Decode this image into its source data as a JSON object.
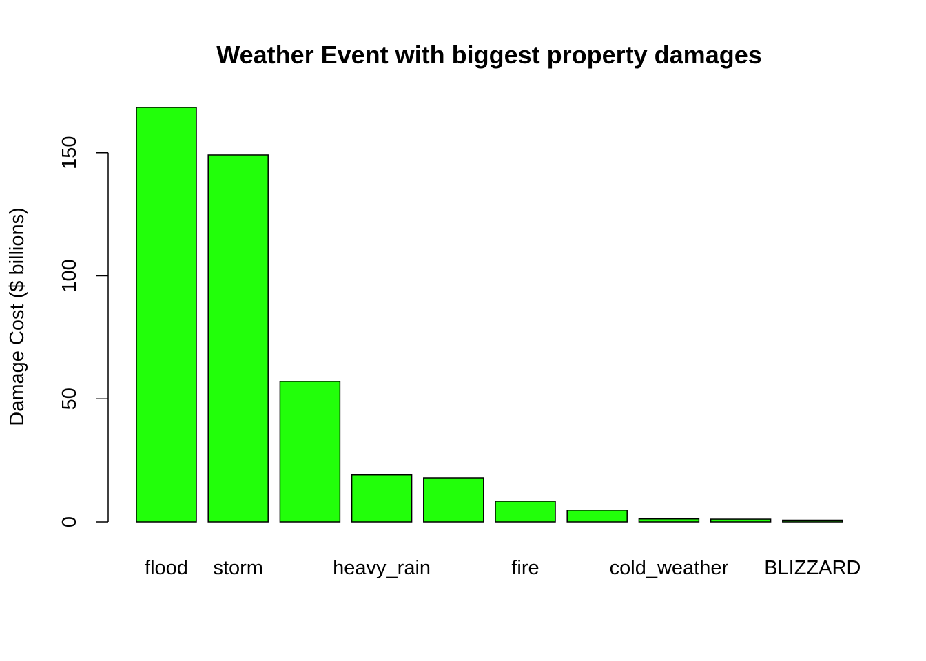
{
  "chart_data": {
    "type": "bar",
    "title": "Weather Event with biggest property damages",
    "xlabel": "",
    "ylabel": "Damage Cost ($ billions)",
    "ylim": [
      0,
      170
    ],
    "yticks": [
      0,
      50,
      100,
      150
    ],
    "grid": false,
    "bar_color": "#22ff0a",
    "bar_border_color": "#000000",
    "categories": [
      "flood",
      "storm",
      "",
      "heavy_rain",
      "",
      "fire",
      "",
      "cold_weather",
      "",
      "BLIZZARD"
    ],
    "values": [
      168.4,
      149.1,
      57.1,
      19.1,
      17.9,
      8.4,
      4.8,
      1.2,
      1.1,
      0.7
    ]
  }
}
